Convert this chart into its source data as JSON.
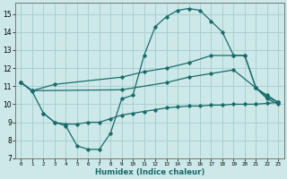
{
  "xlabel": "Humidex (Indice chaleur)",
  "bg_color": "#cce8e8",
  "grid_color": "#aad0d0",
  "line_color": "#1a6b6b",
  "xlim": [
    -0.5,
    23.5
  ],
  "ylim": [
    7,
    15.6
  ],
  "yticks": [
    7,
    8,
    9,
    10,
    11,
    12,
    13,
    14,
    15
  ],
  "xticks": [
    0,
    1,
    2,
    3,
    4,
    5,
    6,
    7,
    8,
    9,
    10,
    11,
    12,
    13,
    14,
    15,
    16,
    17,
    18,
    19,
    20,
    21,
    22,
    23
  ],
  "series": [
    {
      "x": [
        0,
        1,
        2,
        3,
        4,
        5,
        6,
        7,
        8,
        9,
        10,
        11,
        12,
        13,
        14,
        15,
        16,
        17,
        18,
        19,
        20,
        21,
        22,
        23
      ],
      "y": [
        11.2,
        10.7,
        9.5,
        9.0,
        8.8,
        7.7,
        7.5,
        7.5,
        8.4,
        10.3,
        10.5,
        12.7,
        14.3,
        14.85,
        15.2,
        15.3,
        15.2,
        14.6,
        14.0,
        12.7,
        12.7,
        10.9,
        10.5,
        10.1
      ]
    },
    {
      "x": [
        0,
        1,
        3,
        9,
        11,
        13,
        15,
        17,
        19,
        20,
        21,
        22,
        23
      ],
      "y": [
        11.2,
        10.75,
        11.1,
        11.5,
        11.8,
        12.0,
        12.3,
        12.7,
        12.7,
        12.7,
        10.9,
        10.4,
        10.1
      ]
    },
    {
      "x": [
        0,
        1,
        9,
        13,
        15,
        17,
        19,
        21,
        22,
        23
      ],
      "y": [
        11.2,
        10.75,
        10.8,
        11.2,
        11.5,
        11.7,
        11.9,
        10.9,
        10.3,
        10.0
      ]
    },
    {
      "x": [
        2,
        3,
        4,
        5,
        6,
        7,
        8,
        9,
        10,
        11,
        12,
        13,
        14,
        15,
        16,
        17,
        18,
        19,
        20,
        21,
        22,
        23
      ],
      "y": [
        9.5,
        9.0,
        8.9,
        8.9,
        9.0,
        9.0,
        9.2,
        9.4,
        9.5,
        9.6,
        9.7,
        9.8,
        9.85,
        9.9,
        9.9,
        9.95,
        9.95,
        10.0,
        10.0,
        10.0,
        10.05,
        10.1
      ]
    }
  ]
}
